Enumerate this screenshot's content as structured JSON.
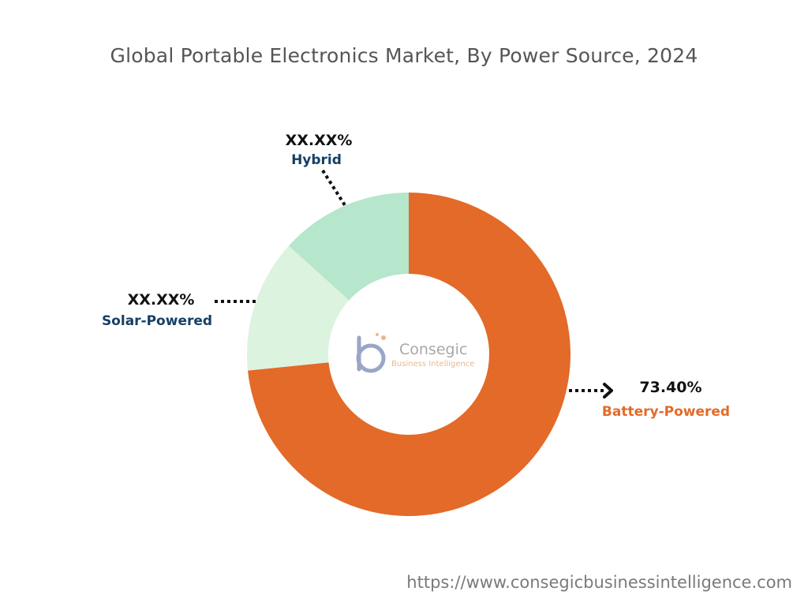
{
  "chart_data": {
    "type": "pie",
    "title": "Global Portable Electronics Market, By Power Source, 2024",
    "categories": [
      "Battery-Powered",
      "Solar-Powered",
      "Hybrid"
    ],
    "values": [
      73.4,
      13.3,
      13.3
    ],
    "value_labels": [
      "73.40%",
      "XX.XX%",
      "XX.XX%"
    ],
    "donut": true,
    "start_angle_deg": 0,
    "direction": "clockwise",
    "colors": [
      "#e36a28",
      "#dcf3e0",
      "#b6e6cb"
    ],
    "label_colors": [
      "#e36a28",
      "#163f66",
      "#163f66"
    ],
    "legend": "none"
  },
  "watermark": {
    "brand": "Consegic",
    "tagline": "Business Intelligence"
  },
  "source_url": "https://www.consegicbusinessintelligence.com"
}
